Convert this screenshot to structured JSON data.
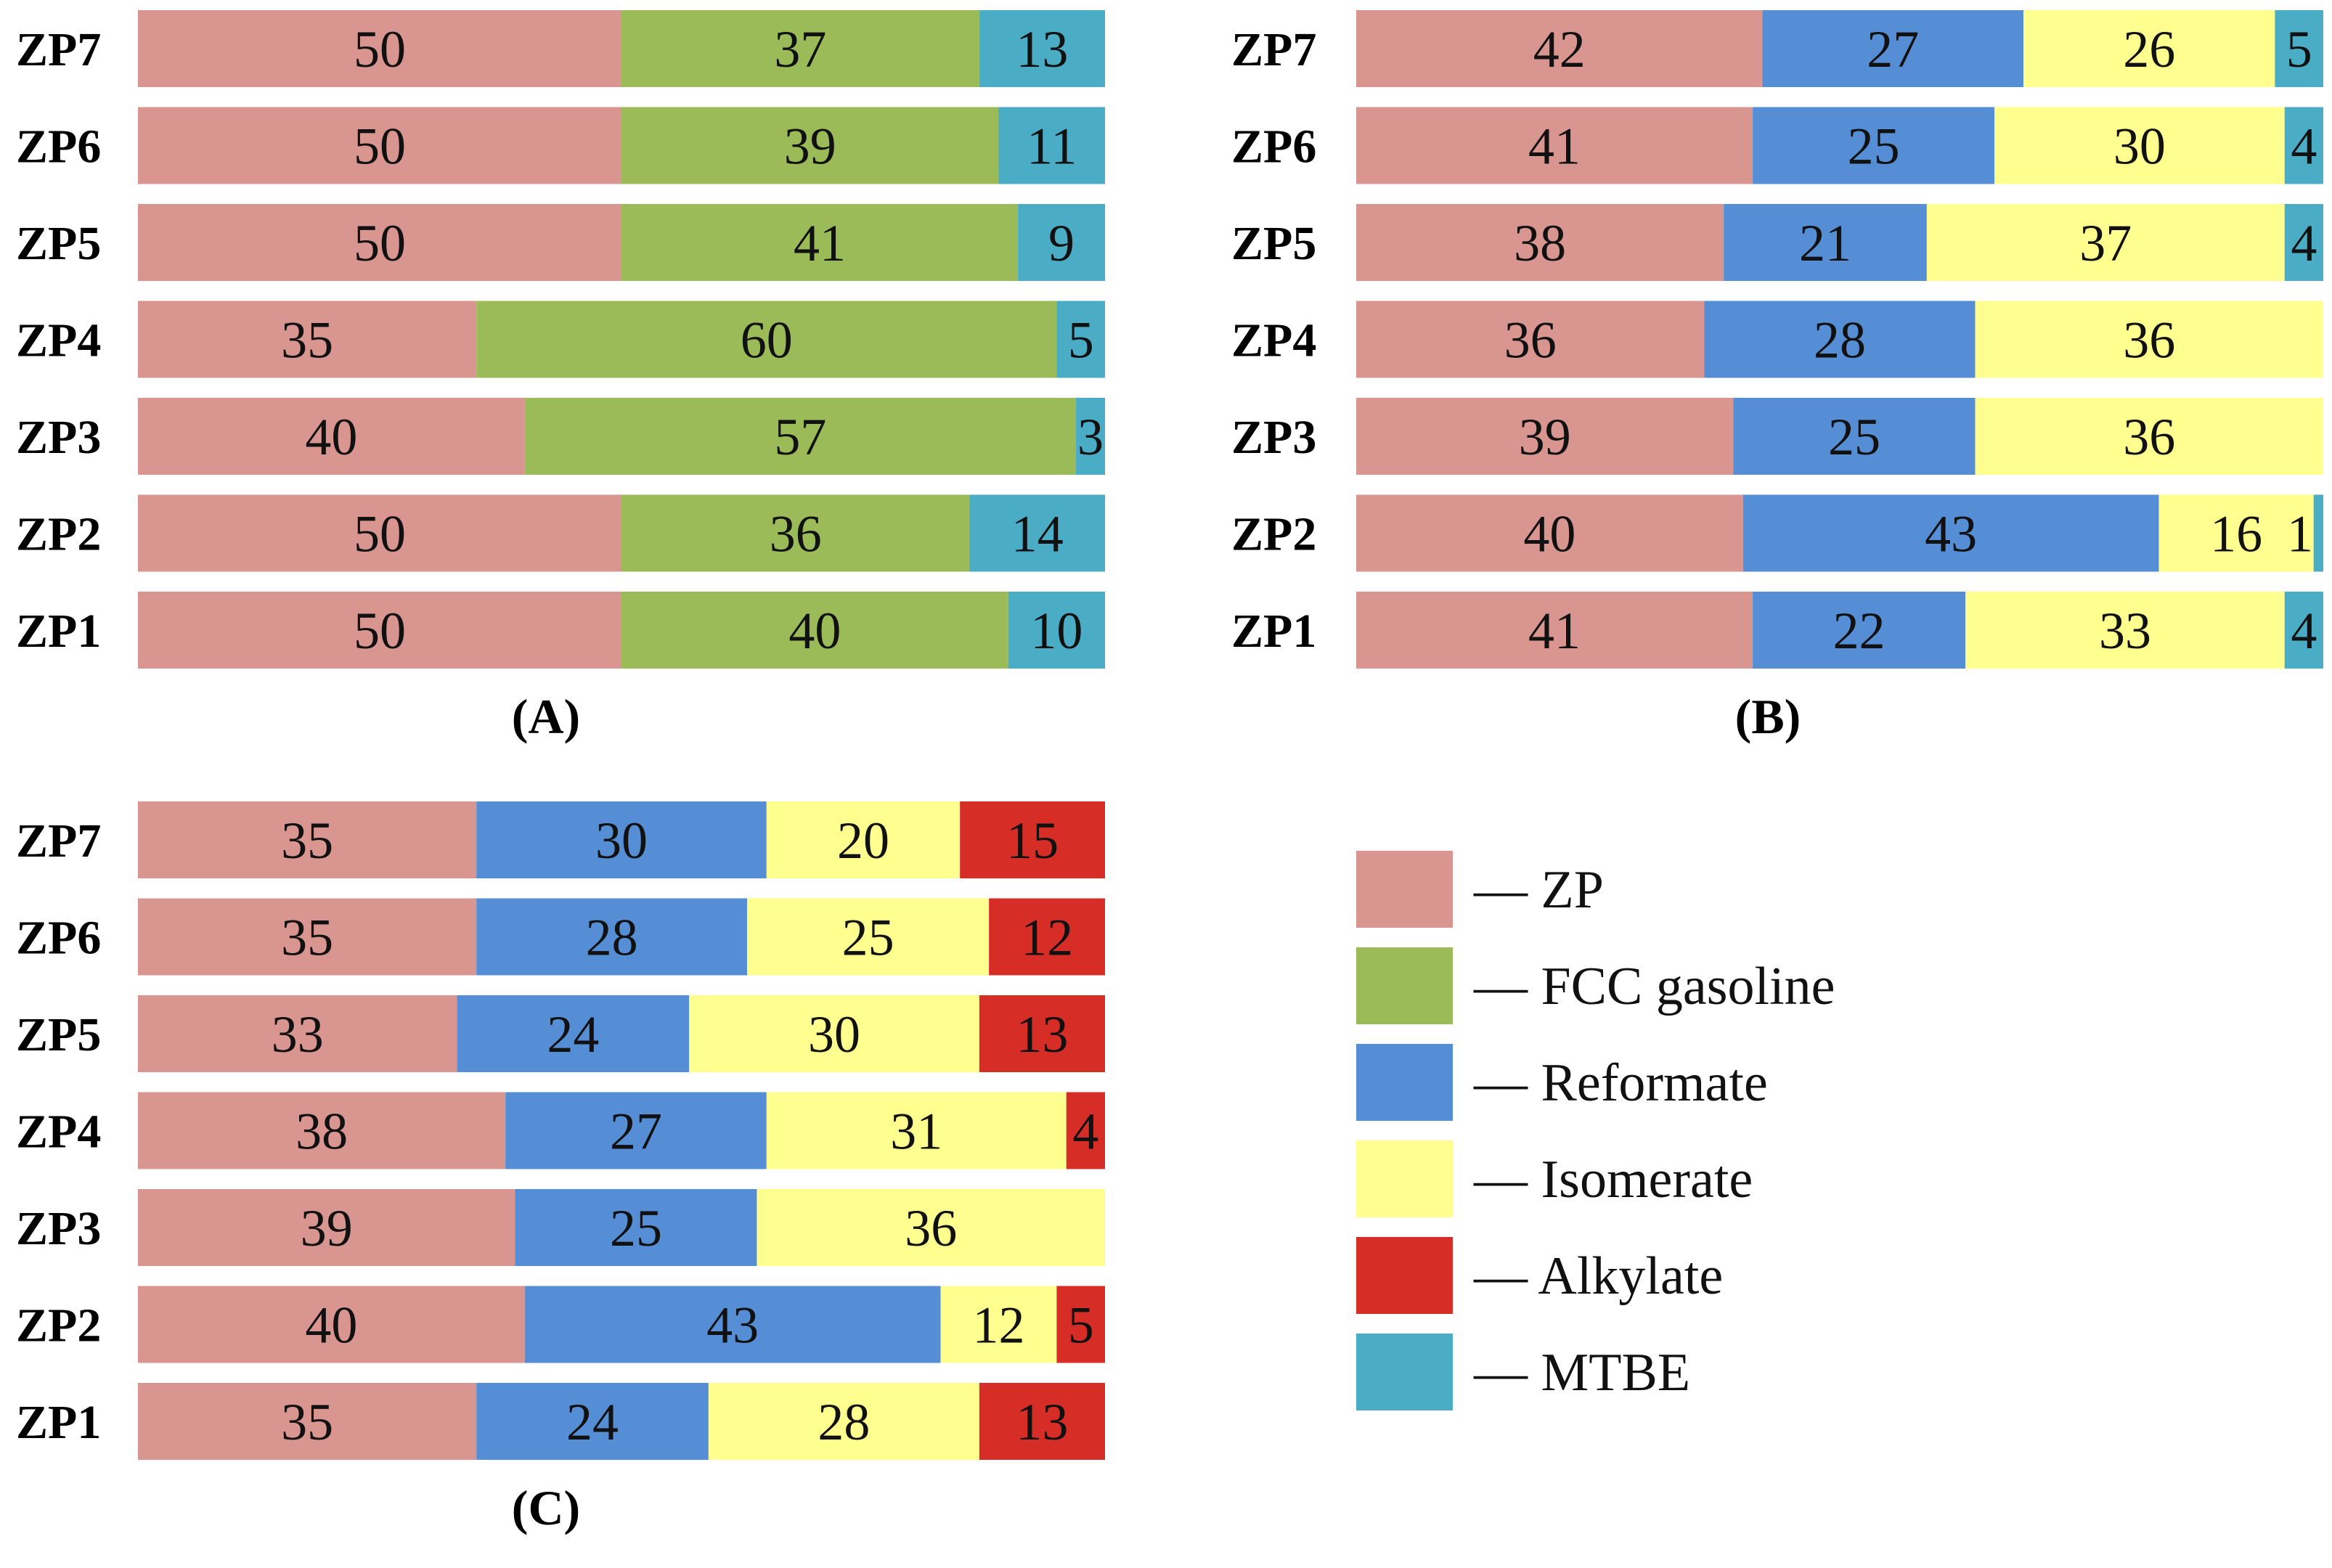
{
  "colors": {
    "ZP": "#d99590",
    "FCC gasoline": "#9bbb59",
    "Reformate": "#558ed5",
    "Isomerate": "#ffff8f",
    "Alkylate": "#d62d27",
    "MTBE": "#4bacc6"
  },
  "legend": {
    "dash": "—",
    "items": [
      "ZP",
      "FCC gasoline",
      "Reformate",
      "Isomerate",
      "Alkylate",
      "MTBE"
    ]
  },
  "chart_data": [
    {
      "type": "bar",
      "orientation": "horizontal",
      "stacked": true,
      "title": "(A)",
      "categories": [
        "ZP7",
        "ZP6",
        "ZP5",
        "ZP4",
        "ZP3",
        "ZP2",
        "ZP1"
      ],
      "series": [
        {
          "name": "ZP",
          "values": [
            50,
            50,
            50,
            35,
            40,
            50,
            50
          ]
        },
        {
          "name": "FCC gasoline",
          "values": [
            37,
            39,
            41,
            60,
            57,
            36,
            40
          ]
        },
        {
          "name": "MTBE",
          "values": [
            13,
            11,
            9,
            5,
            3,
            14,
            10
          ]
        }
      ],
      "xlim": [
        0,
        100
      ]
    },
    {
      "type": "bar",
      "orientation": "horizontal",
      "stacked": true,
      "title": "(B)",
      "categories": [
        "ZP7",
        "ZP6",
        "ZP5",
        "ZP4",
        "ZP3",
        "ZP2",
        "ZP1"
      ],
      "series": [
        {
          "name": "ZP",
          "values": [
            42,
            41,
            38,
            36,
            39,
            40,
            41
          ]
        },
        {
          "name": "Reformate",
          "values": [
            27,
            25,
            21,
            28,
            25,
            43,
            22
          ]
        },
        {
          "name": "Isomerate",
          "values": [
            26,
            30,
            37,
            36,
            36,
            16,
            33
          ]
        },
        {
          "name": "MTBE",
          "values": [
            5,
            4,
            4,
            0,
            0,
            1,
            4
          ]
        }
      ],
      "xlim": [
        0,
        100
      ]
    },
    {
      "type": "bar",
      "orientation": "horizontal",
      "stacked": true,
      "title": "(C)",
      "categories": [
        "ZP7",
        "ZP6",
        "ZP5",
        "ZP4",
        "ZP3",
        "ZP2",
        "ZP1"
      ],
      "series": [
        {
          "name": "ZP",
          "values": [
            35,
            35,
            33,
            38,
            39,
            40,
            35
          ]
        },
        {
          "name": "Reformate",
          "values": [
            30,
            28,
            24,
            27,
            25,
            43,
            24
          ]
        },
        {
          "name": "Isomerate",
          "values": [
            20,
            25,
            30,
            31,
            36,
            12,
            28
          ]
        },
        {
          "name": "Alkylate",
          "values": [
            15,
            12,
            13,
            4,
            0,
            5,
            13
          ]
        }
      ],
      "xlim": [
        0,
        100
      ]
    }
  ]
}
